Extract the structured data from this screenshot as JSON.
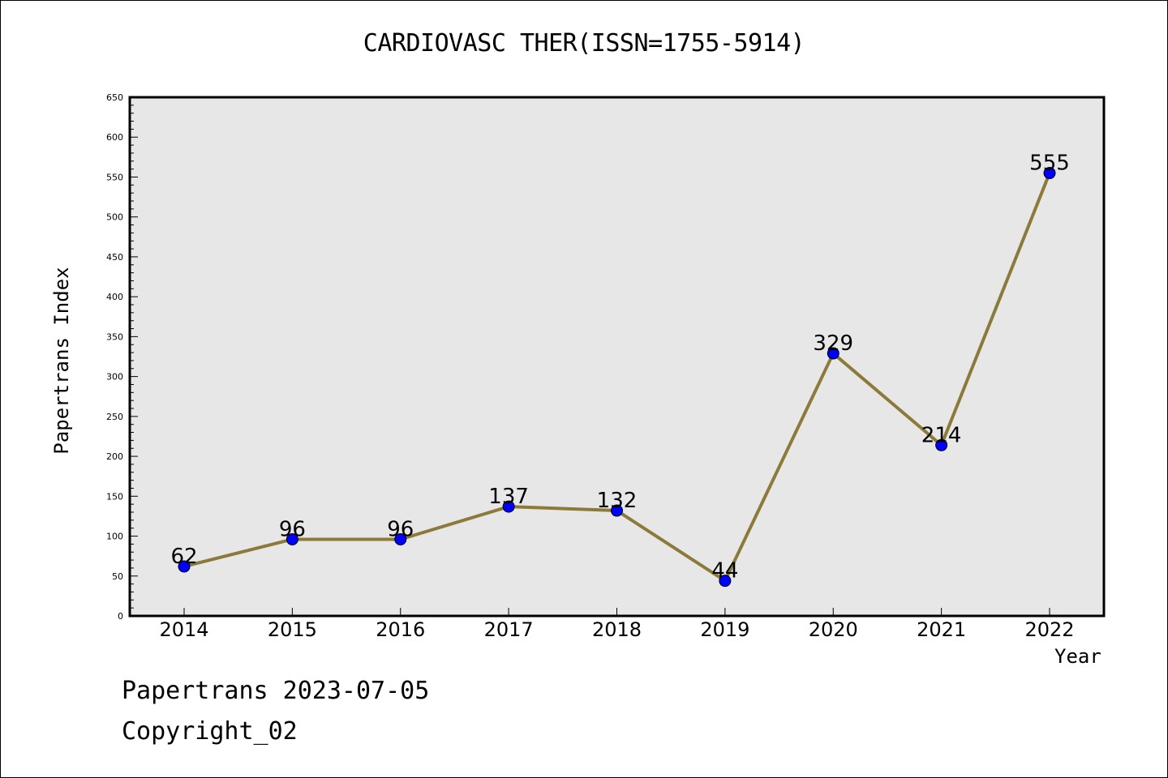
{
  "chart_data": {
    "type": "line",
    "title": "CARDIOVASC THER(ISSN=1755-5914)",
    "xlabel": "Year",
    "ylabel": "Papertrans Index",
    "categories": [
      "2014",
      "2015",
      "2016",
      "2017",
      "2018",
      "2019",
      "2020",
      "2021",
      "2022"
    ],
    "values": [
      62,
      96,
      96,
      137,
      132,
      44,
      329,
      214,
      555
    ],
    "data_labels": [
      "62",
      "96",
      "96",
      "137",
      "132",
      "44",
      "329",
      "214",
      "555"
    ],
    "ylim": [
      0,
      650
    ],
    "yticks": [
      "0",
      "50",
      "100",
      "150",
      "200",
      "250",
      "300",
      "350",
      "400",
      "450",
      "500",
      "550",
      "600",
      "650"
    ],
    "grid": false,
    "colors": {
      "plot_background": "#e7e7e7",
      "line": "#8b7a3a",
      "marker": "#0000ff"
    }
  },
  "footer": {
    "line1": "Papertrans 2023-07-05",
    "line2": "Copyright_02"
  }
}
